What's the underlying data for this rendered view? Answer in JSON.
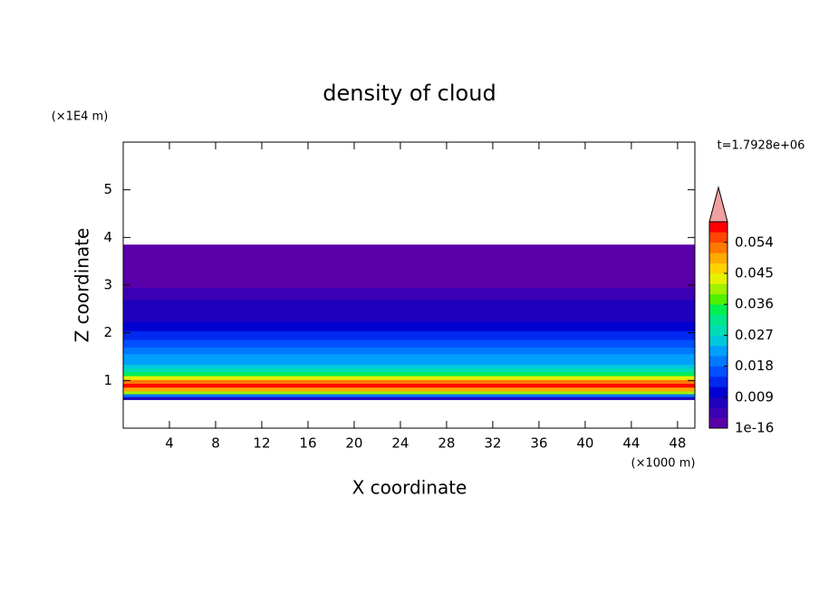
{
  "chart_data": {
    "type": "contour",
    "title": "density of cloud",
    "x_label": "X coordinate",
    "y_label": "Z coordinate",
    "x_unit": "(×1000 m)",
    "y_unit": "(×1E4 m)",
    "time_label": "t=1.7928e+06",
    "xlim": [
      0,
      49.5
    ],
    "ylim": [
      0,
      6
    ],
    "xticks": [
      4,
      8,
      12,
      16,
      20,
      24,
      28,
      32,
      36,
      40,
      44,
      48
    ],
    "yticks": [
      1,
      2,
      3,
      4,
      5
    ],
    "z_bins": [
      0.6,
      0.66,
      0.72,
      0.78,
      0.86,
      0.94,
      1.02,
      1.1,
      1.18,
      1.26,
      1.34,
      1.44,
      1.56,
      1.7,
      1.86,
      2.04,
      2.24,
      2.46,
      2.7,
      2.95,
      3.25,
      3.85
    ],
    "values": [
      0.008,
      0.02,
      0.04,
      0.05,
      0.057,
      0.052,
      0.043,
      0.035,
      0.03,
      0.027,
      0.024,
      0.022,
      0.02,
      0.018,
      0.015,
      0.012,
      0.009,
      0.007,
      0.005,
      0.003,
      0.001
    ],
    "colorbar": {
      "lim": [
        1e-16,
        0.06
      ],
      "ticks": [
        1e-16,
        0.009,
        0.018,
        0.027,
        0.036,
        0.045,
        0.054
      ],
      "colors": [
        "#5a00aa",
        "#3c00b4",
        "#1e00be",
        "#0000d2",
        "#0028f0",
        "#0050ff",
        "#0078ff",
        "#00a0ff",
        "#00c8dc",
        "#00dcb4",
        "#00e68c",
        "#00f050",
        "#50f000",
        "#a0f000",
        "#e6f000",
        "#ffd200",
        "#ffaa00",
        "#ff7800",
        "#ff4600",
        "#ff0000"
      ],
      "extend_color": "#f0a0a0"
    }
  }
}
